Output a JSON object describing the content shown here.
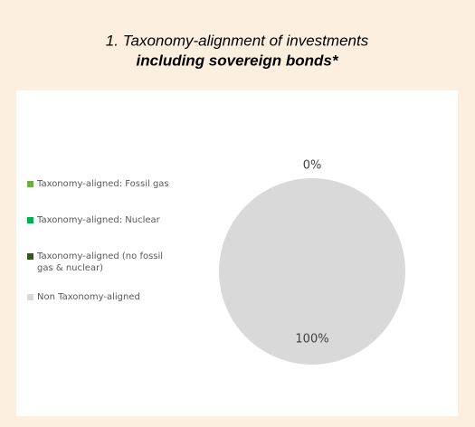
{
  "chart_data": {
    "type": "pie",
    "title": "1. Taxonomy-alignment of investments",
    "subtitle": "including sovereign bonds*",
    "categories": [
      "Taxonomy-aligned: Fossil gas",
      "Taxonomy-aligned: Nuclear",
      "Taxonomy-aligned (no fossil gas & nuclear)",
      "Non Taxonomy-aligned"
    ],
    "values": [
      0,
      0,
      0,
      100
    ],
    "value_labels": [
      "0%",
      null,
      null,
      "100%"
    ],
    "colors": [
      "#70ad47",
      "#00b050",
      "#375623",
      "#d9d9d9"
    ],
    "legend": "left"
  }
}
